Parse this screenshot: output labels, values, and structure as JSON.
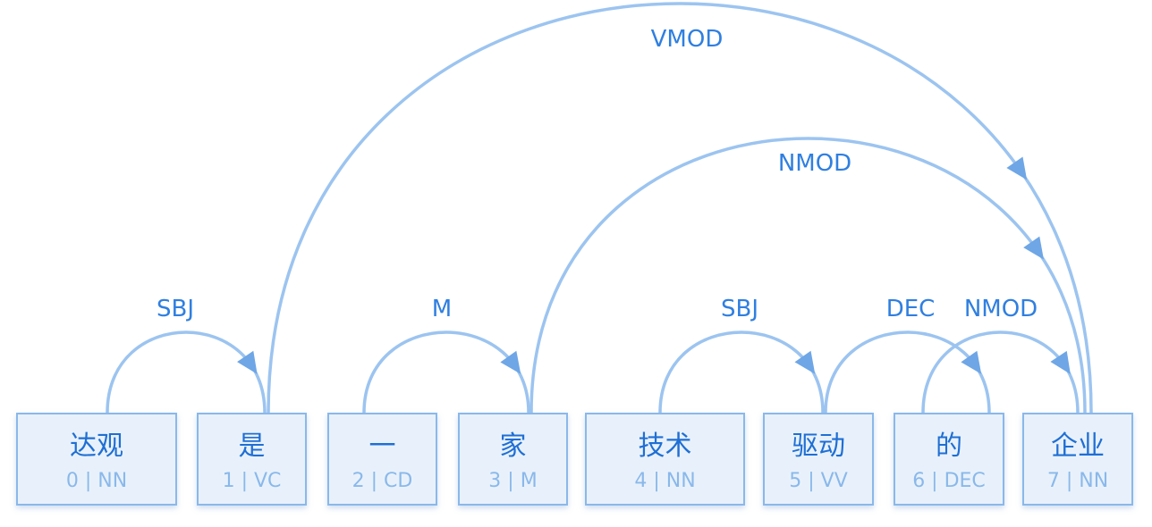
{
  "tokens": [
    {
      "word": "达观",
      "index": "0",
      "pos": "NN"
    },
    {
      "word": "是",
      "index": "1",
      "pos": "VC"
    },
    {
      "word": "一",
      "index": "2",
      "pos": "CD"
    },
    {
      "word": "家",
      "index": "3",
      "pos": "M"
    },
    {
      "word": "技术",
      "index": "4",
      "pos": "NN"
    },
    {
      "word": "驱动",
      "index": "5",
      "pos": "VV"
    },
    {
      "word": "的",
      "index": "6",
      "pos": "DEC"
    },
    {
      "word": "企业",
      "index": "7",
      "pos": "NN"
    }
  ],
  "arcs": [
    {
      "label": "SBJ",
      "from": 0,
      "to": 1
    },
    {
      "label": "M",
      "from": 2,
      "to": 3
    },
    {
      "label": "SBJ",
      "from": 4,
      "to": 5
    },
    {
      "label": "DEC",
      "from": 5,
      "to": 6
    },
    {
      "label": "NMOD",
      "from": 6,
      "to": 7
    },
    {
      "label": "NMOD",
      "from": 3,
      "to": 7
    },
    {
      "label": "VMOD",
      "from": 1,
      "to": 7
    }
  ],
  "colors": {
    "box_fill": "#e8f1fb",
    "box_border": "#8ab8ea",
    "word": "#1f6fd4",
    "arc": "#9cc4f0",
    "label": "#2f7fe0"
  }
}
